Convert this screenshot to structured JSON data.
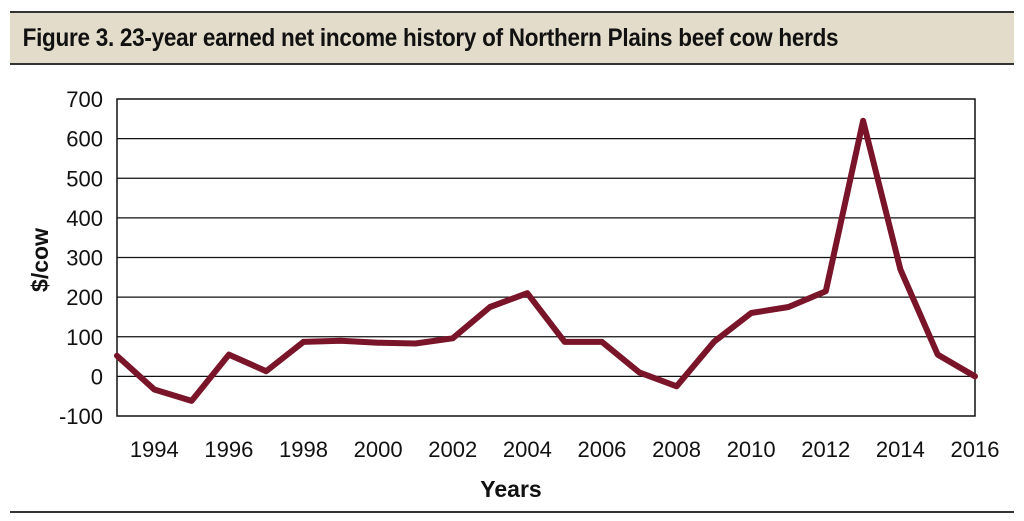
{
  "figure": {
    "title": "Figure 3. 23-year earned net income history of Northern Plains beef cow herds",
    "band_color": "#e3dccb",
    "line_color": "#7a1428"
  },
  "chart_data": {
    "type": "line",
    "title": "Figure 3. 23-year earned net income history of Northern Plains beef cow herds",
    "xlabel": "Years",
    "ylabel": "$/cow",
    "ylim": [
      -100,
      700
    ],
    "yticks": [
      -100,
      0,
      100,
      200,
      300,
      400,
      500,
      600,
      700
    ],
    "xticks": [
      1994,
      1996,
      1998,
      2000,
      2002,
      2004,
      2006,
      2008,
      2010,
      2012,
      2014,
      2016
    ],
    "grid": true,
    "x": [
      1993,
      1994,
      1995,
      1996,
      1997,
      1998,
      1999,
      2000,
      2001,
      2002,
      2003,
      2004,
      2005,
      2006,
      2007,
      2008,
      2009,
      2010,
      2011,
      2012,
      2013,
      2014,
      2015,
      2016
    ],
    "series": [
      {
        "values": [
          52,
          -33,
          -62,
          55,
          13,
          87,
          90,
          85,
          83,
          96,
          175,
          210,
          87,
          87,
          10,
          -25,
          87,
          160,
          175,
          215,
          645,
          270,
          55,
          0
        ]
      }
    ]
  }
}
